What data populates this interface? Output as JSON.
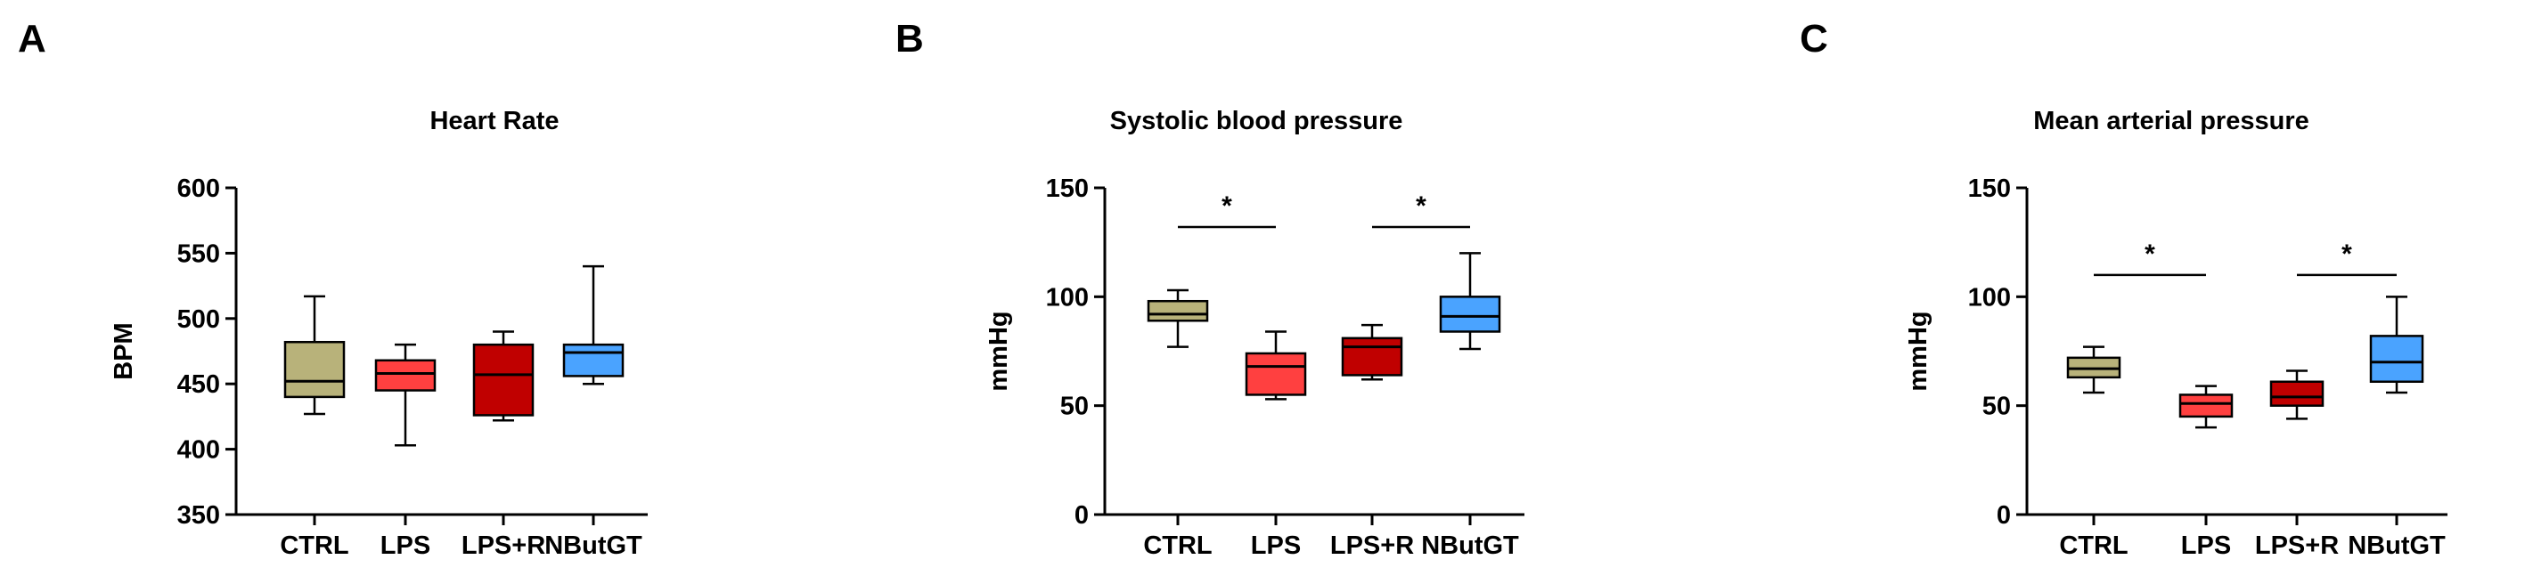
{
  "chart_data": [
    {
      "panel": "A",
      "type": "box",
      "title": "Heart Rate",
      "ylabel": "BPM",
      "xlabel": "",
      "ylim": [
        350,
        600
      ],
      "yticks": [
        350,
        400,
        450,
        500,
        550,
        600
      ],
      "categories": [
        "CTRL",
        "LPS",
        "LPS+R",
        "NButGT"
      ],
      "colors": [
        "#b8b27a",
        "#ff4040",
        "#c00000",
        "#4aa3ff"
      ],
      "boxes": [
        {
          "min": 427,
          "q1": 440,
          "median": 452,
          "q3": 482,
          "max": 517
        },
        {
          "min": 403,
          "q1": 445,
          "median": 458,
          "q3": 468,
          "max": 480
        },
        {
          "min": 422,
          "q1": 426,
          "median": 457,
          "q3": 480,
          "max": 490
        },
        {
          "min": 450,
          "q1": 456,
          "median": 474,
          "q3": 480,
          "max": 540
        }
      ],
      "significance": []
    },
    {
      "panel": "B",
      "type": "box",
      "title": "Systolic blood pressure",
      "ylabel": "mmHg",
      "xlabel": "",
      "ylim": [
        0,
        150
      ],
      "yticks": [
        0,
        50,
        100,
        150
      ],
      "categories": [
        "CTRL",
        "LPS",
        "LPS+R",
        "NButGT"
      ],
      "colors": [
        "#b8b27a",
        "#ff4040",
        "#c00000",
        "#4aa3ff"
      ],
      "boxes": [
        {
          "min": 77,
          "q1": 89,
          "median": 92,
          "q3": 98,
          "max": 103
        },
        {
          "min": 53,
          "q1": 55,
          "median": 68,
          "q3": 74,
          "max": 84
        },
        {
          "min": 62,
          "q1": 64,
          "median": 77,
          "q3": 81,
          "max": 87
        },
        {
          "min": 76,
          "q1": 84,
          "median": 91,
          "q3": 100,
          "max": 120
        }
      ],
      "significance": [
        {
          "from": 0,
          "to": 1,
          "y": 132,
          "label": "*"
        },
        {
          "from": 2,
          "to": 3,
          "y": 132,
          "label": "*"
        }
      ]
    },
    {
      "panel": "C",
      "type": "box",
      "title": "Mean arterial pressure",
      "ylabel": "mmHg",
      "xlabel": "",
      "ylim": [
        0,
        150
      ],
      "yticks": [
        0,
        50,
        100,
        150
      ],
      "categories": [
        "CTRL",
        "LPS",
        "LPS+R",
        "NButGT"
      ],
      "colors": [
        "#b8b27a",
        "#ff4040",
        "#c00000",
        "#4aa3ff"
      ],
      "boxes": [
        {
          "min": 56,
          "q1": 63,
          "median": 67,
          "q3": 72,
          "max": 77
        },
        {
          "min": 40,
          "q1": 45,
          "median": 51,
          "q3": 55,
          "max": 59
        },
        {
          "min": 44,
          "q1": 50,
          "median": 54,
          "q3": 61,
          "max": 66
        },
        {
          "min": 56,
          "q1": 61,
          "median": 70,
          "q3": 82,
          "max": 100
        }
      ],
      "significance": [
        {
          "from": 0,
          "to": 1,
          "y": 110,
          "label": "*"
        },
        {
          "from": 2,
          "to": 3,
          "y": 110,
          "label": "*"
        }
      ]
    }
  ]
}
